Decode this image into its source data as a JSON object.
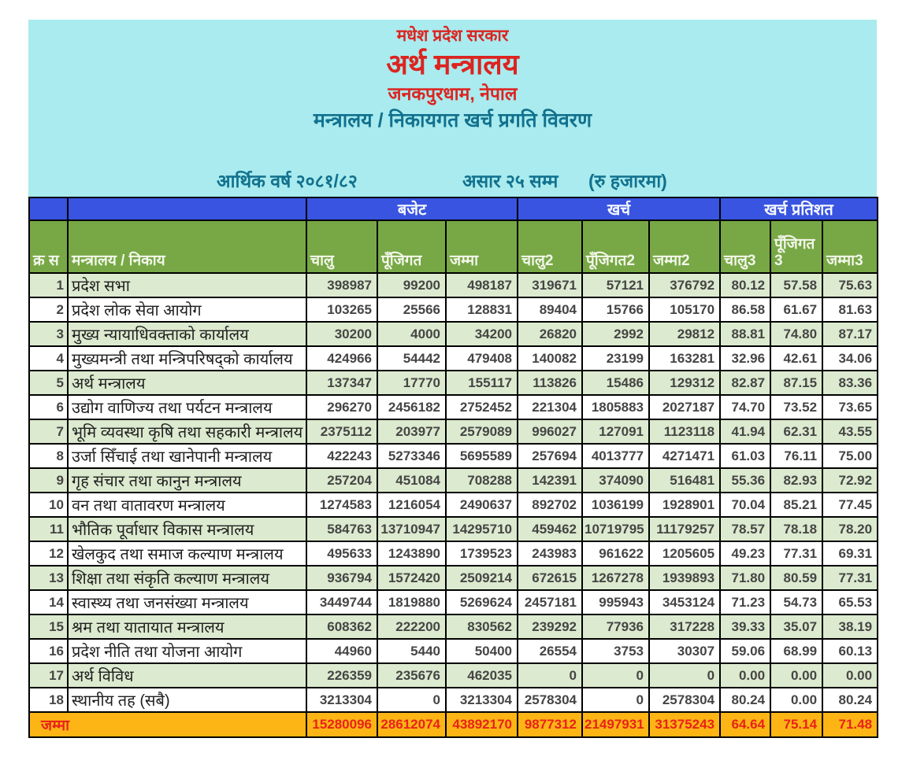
{
  "page": {
    "government": "मधेश प्रदेश सरकार",
    "ministry": "अर्थ मन्त्रालय",
    "location": "जनकपुरधाम, नेपाल",
    "report_title": "मन्त्रालय / निकायगत खर्च प्रगति विवरण",
    "fiscal_year": "आर्थिक वर्ष २०८१/८२",
    "period": "असार २५ सम्म",
    "unit": "(रु हजारमा)"
  },
  "colors": {
    "header_background": "#a9ebee",
    "title_red": "#dc2420",
    "title_teal": "#11718e",
    "band_blue": "#3854e0",
    "band_green": "#77a845",
    "row_green": "#dceacf",
    "total_orange": "#fcb514",
    "total_red": "#e8221a"
  },
  "table": {
    "group_headers": {
      "budget": "बजेट",
      "expenditure": "खर्च",
      "expenditure_percent": "खर्च प्रतिशत"
    },
    "columns": [
      "क्र स",
      "मन्त्रालय / निकाय",
      "चालु",
      "पूँजिगत",
      "जम्मा",
      "चालु2",
      "पूँजिगत2",
      "जम्मा2",
      "चालु3",
      "पूँजिगत 3",
      "जम्मा3"
    ],
    "rows": [
      {
        "sn": "1",
        "name": "प्रदेश सभा",
        "values": [
          "398987",
          "99200",
          "498187",
          "319671",
          "57121",
          "376792",
          "80.12",
          "57.58",
          "75.63"
        ]
      },
      {
        "sn": "2",
        "name": "प्रदेश लोक सेवा आयोग",
        "values": [
          "103265",
          "25566",
          "128831",
          "89404",
          "15766",
          "105170",
          "86.58",
          "61.67",
          "81.63"
        ]
      },
      {
        "sn": "3",
        "name": "मुख्य न्यायाधिवक्ताको कार्यालय",
        "values": [
          "30200",
          "4000",
          "34200",
          "26820",
          "2992",
          "29812",
          "88.81",
          "74.80",
          "87.17"
        ]
      },
      {
        "sn": "4",
        "name": "मुख्यमन्त्री तथा मन्त्रिपरिषद्को कार्यालय",
        "values": [
          "424966",
          "54442",
          "479408",
          "140082",
          "23199",
          "163281",
          "32.96",
          "42.61",
          "34.06"
        ]
      },
      {
        "sn": "5",
        "name": "अर्थ मन्त्रालय",
        "values": [
          "137347",
          "17770",
          "155117",
          "113826",
          "15486",
          "129312",
          "82.87",
          "87.15",
          "83.36"
        ]
      },
      {
        "sn": "6",
        "name": "उद्योग वाणिज्य तथा पर्यटन मन्त्रालय",
        "values": [
          "296270",
          "2456182",
          "2752452",
          "221304",
          "1805883",
          "2027187",
          "74.70",
          "73.52",
          "73.65"
        ]
      },
      {
        "sn": "7",
        "name": "भूमि व्यवस्था कृषि तथा सहकारी मन्त्रालय",
        "values": [
          "2375112",
          "203977",
          "2579089",
          "996027",
          "127091",
          "1123118",
          "41.94",
          "62.31",
          "43.55"
        ]
      },
      {
        "sn": "8",
        "name": "उर्जा सिँचाई तथा खानेपानी मन्त्रालय",
        "values": [
          "422243",
          "5273346",
          "5695589",
          "257694",
          "4013777",
          "4271471",
          "61.03",
          "76.11",
          "75.00"
        ]
      },
      {
        "sn": "9",
        "name": "गृह संचार तथा कानुन मन्त्रालय",
        "values": [
          "257204",
          "451084",
          "708288",
          "142391",
          "374090",
          "516481",
          "55.36",
          "82.93",
          "72.92"
        ]
      },
      {
        "sn": "10",
        "name": "वन तथा वातावरण मन्त्रालय",
        "values": [
          "1274583",
          "1216054",
          "2490637",
          "892702",
          "1036199",
          "1928901",
          "70.04",
          "85.21",
          "77.45"
        ]
      },
      {
        "sn": "11",
        "name": "भौतिक पूर्वाधार विकास मन्त्रालय",
        "values": [
          "584763",
          "13710947",
          "14295710",
          "459462",
          "10719795",
          "11179257",
          "78.57",
          "78.18",
          "78.20"
        ]
      },
      {
        "sn": "12",
        "name": "खेलकुद तथा समाज कल्याण मन्त्रालय",
        "values": [
          "495633",
          "1243890",
          "1739523",
          "243983",
          "961622",
          "1205605",
          "49.23",
          "77.31",
          "69.31"
        ]
      },
      {
        "sn": "13",
        "name": "शिक्षा तथा संकृति कल्याण मन्त्रालय",
        "values": [
          "936794",
          "1572420",
          "2509214",
          "672615",
          "1267278",
          "1939893",
          "71.80",
          "80.59",
          "77.31"
        ]
      },
      {
        "sn": "14",
        "name": "स्वास्थ्य तथा जनसंख्या मन्त्रालय",
        "values": [
          "3449744",
          "1819880",
          "5269624",
          "2457181",
          "995943",
          "3453124",
          "71.23",
          "54.73",
          "65.53"
        ]
      },
      {
        "sn": "15",
        "name": "श्रम तथा यातायात मन्त्रालय",
        "values": [
          "608362",
          "222200",
          "830562",
          "239292",
          "77936",
          "317228",
          "39.33",
          "35.07",
          "38.19"
        ]
      },
      {
        "sn": "16",
        "name": "प्रदेश नीति तथा योजना आयोग",
        "values": [
          "44960",
          "5440",
          "50400",
          "26554",
          "3753",
          "30307",
          "59.06",
          "68.99",
          "60.13"
        ]
      },
      {
        "sn": "17",
        "name": "अर्थ विविध",
        "values": [
          "226359",
          "235676",
          "462035",
          "0",
          "0",
          "0",
          "0.00",
          "0.00",
          "0.00"
        ]
      },
      {
        "sn": "18",
        "name": "स्थानीय तह (सबै)",
        "values": [
          "3213304",
          "0",
          "3213304",
          "2578304",
          "0",
          "2578304",
          "80.24",
          "0.00",
          "80.24"
        ]
      }
    ],
    "total": {
      "label": "जम्मा",
      "values": [
        "15280096",
        "28612074",
        "43892170",
        "9877312",
        "21497931",
        "31375243",
        "64.64",
        "75.14",
        "71.48"
      ]
    }
  }
}
